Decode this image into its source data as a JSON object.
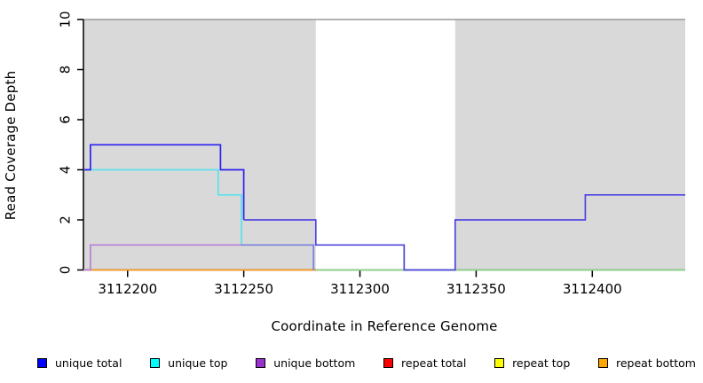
{
  "figure": {
    "xlabel": "Coordinate in Reference Genome",
    "ylabel": "Read Coverage Depth"
  },
  "legend": {
    "items": [
      {
        "label": "unique total",
        "color": "#0000ff"
      },
      {
        "label": "unique top",
        "color": "#00ffff"
      },
      {
        "label": "unique bottom",
        "color": "#9932cc"
      },
      {
        "label": "repeat total",
        "color": "#ff0000"
      },
      {
        "label": "repeat top",
        "color": "#ffff00"
      },
      {
        "label": "repeat bottom",
        "color": "#ffa500"
      }
    ]
  },
  "chart_data": {
    "type": "line",
    "title": "",
    "xlabel": "Coordinate in Reference Genome",
    "ylabel": "Read Coverage Depth",
    "xlim": [
      3112181,
      3112440
    ],
    "ylim": [
      0,
      10
    ],
    "xticks": [
      3112200,
      3112250,
      3112300,
      3112350,
      3112400
    ],
    "yticks": [
      0,
      2,
      4,
      6,
      8,
      10
    ],
    "grid": false,
    "legend_position": "bottom",
    "frame_top_color": "#999999",
    "background_regions": [
      {
        "name": "shaded-region-left",
        "x0": 3112181,
        "x1": 3112281,
        "color": "#d9d9d9"
      },
      {
        "name": "shaded-region-right",
        "x0": 3112341,
        "x1": 3112440,
        "color": "#d9d9d9"
      }
    ],
    "series": [
      {
        "name": "repeat total",
        "legend_color": "#ff0000",
        "segments": []
      },
      {
        "name": "repeat top",
        "legend_color": "#ffff00",
        "segments": [
          {
            "color": "#90d890",
            "points": [
              [
                3112281,
                0
              ],
              [
                3112440,
                0
              ]
            ]
          }
        ]
      },
      {
        "name": "repeat bottom",
        "legend_color": "#ffa500",
        "segments": [
          {
            "color": "#ff9d26",
            "points": [
              [
                3112181,
                0
              ],
              [
                3112281,
                0
              ]
            ]
          }
        ]
      },
      {
        "name": "unique top",
        "legend_color": "#00ffff",
        "segments": [
          {
            "color": "#5ce2ea",
            "points": [
              [
                3112181,
                4
              ],
              [
                3112239,
                4
              ],
              [
                3112239,
                3
              ],
              [
                3112249,
                3
              ],
              [
                3112249,
                1
              ],
              [
                3112280,
                1
              ],
              [
                3112280,
                0
              ]
            ]
          }
        ]
      },
      {
        "name": "unique bottom",
        "legend_color": "#9932cc",
        "segments": [
          {
            "color": "#b77fd9",
            "points": [
              [
                3112181,
                0
              ],
              [
                3112184,
                0
              ],
              [
                3112184,
                1
              ],
              [
                3112249,
                1
              ]
            ]
          },
          {
            "color": "#7f7eda",
            "points": [
              [
                3112249,
                1
              ],
              [
                3112280,
                1
              ],
              [
                3112280,
                0
              ]
            ]
          }
        ]
      },
      {
        "name": "unique total",
        "legend_color": "#0000ff",
        "segments": [
          {
            "color": "#2a22ef",
            "points": [
              [
                3112181,
                4
              ],
              [
                3112184,
                4
              ],
              [
                3112184,
                5
              ],
              [
                3112240,
                5
              ],
              [
                3112240,
                4
              ],
              [
                3112250,
                4
              ],
              [
                3112250,
                2
              ]
            ]
          },
          {
            "color": "#5045e0",
            "points": [
              [
                3112250,
                2
              ],
              [
                3112281,
                2
              ],
              [
                3112281,
                1
              ],
              [
                3112319,
                1
              ],
              [
                3112319,
                0
              ],
              [
                3112341,
                0
              ],
              [
                3112341,
                2
              ],
              [
                3112397,
                2
              ],
              [
                3112397,
                3
              ],
              [
                3112440,
                3
              ]
            ]
          }
        ]
      }
    ]
  }
}
